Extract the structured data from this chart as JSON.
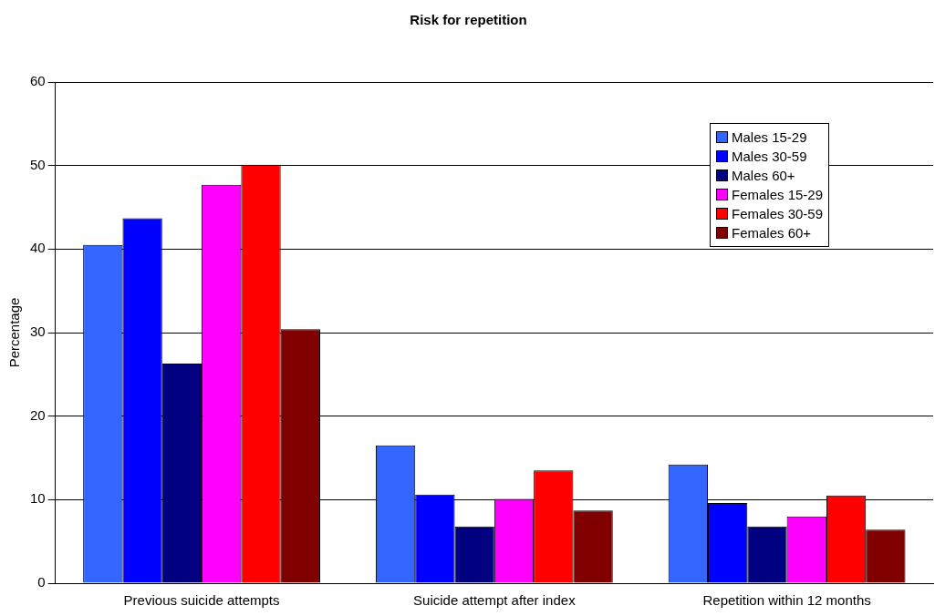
{
  "chart_data": {
    "type": "bar",
    "title": "Risk for repetition",
    "ylabel": "Percentage",
    "categories": [
      "Previous suicide attempts",
      "Suicide attempt after index",
      "Repetition within 12 months"
    ],
    "series": [
      {
        "name": "Males 15-29",
        "color": "#3366ff",
        "values": [
          40.5,
          16.5,
          14.2
        ]
      },
      {
        "name": "Males 30-59",
        "color": "#0000ff",
        "values": [
          43.7,
          10.6,
          9.6
        ]
      },
      {
        "name": "Males 60+",
        "color": "#000080",
        "values": [
          26.3,
          6.8,
          6.8
        ]
      },
      {
        "name": "Females 15-29",
        "color": "#ff00ff",
        "values": [
          47.7,
          10.1,
          8.0
        ]
      },
      {
        "name": "Females 30-59",
        "color": "#ff0000",
        "values": [
          50.1,
          13.5,
          10.5
        ]
      },
      {
        "name": "Females 60+",
        "color": "#800000",
        "values": [
          30.4,
          8.7,
          6.4
        ]
      }
    ],
    "ylim": [
      0,
      60
    ],
    "yticks": [
      0,
      10,
      20,
      30,
      40,
      50,
      60
    ],
    "grid": "y",
    "legend": "top right"
  }
}
